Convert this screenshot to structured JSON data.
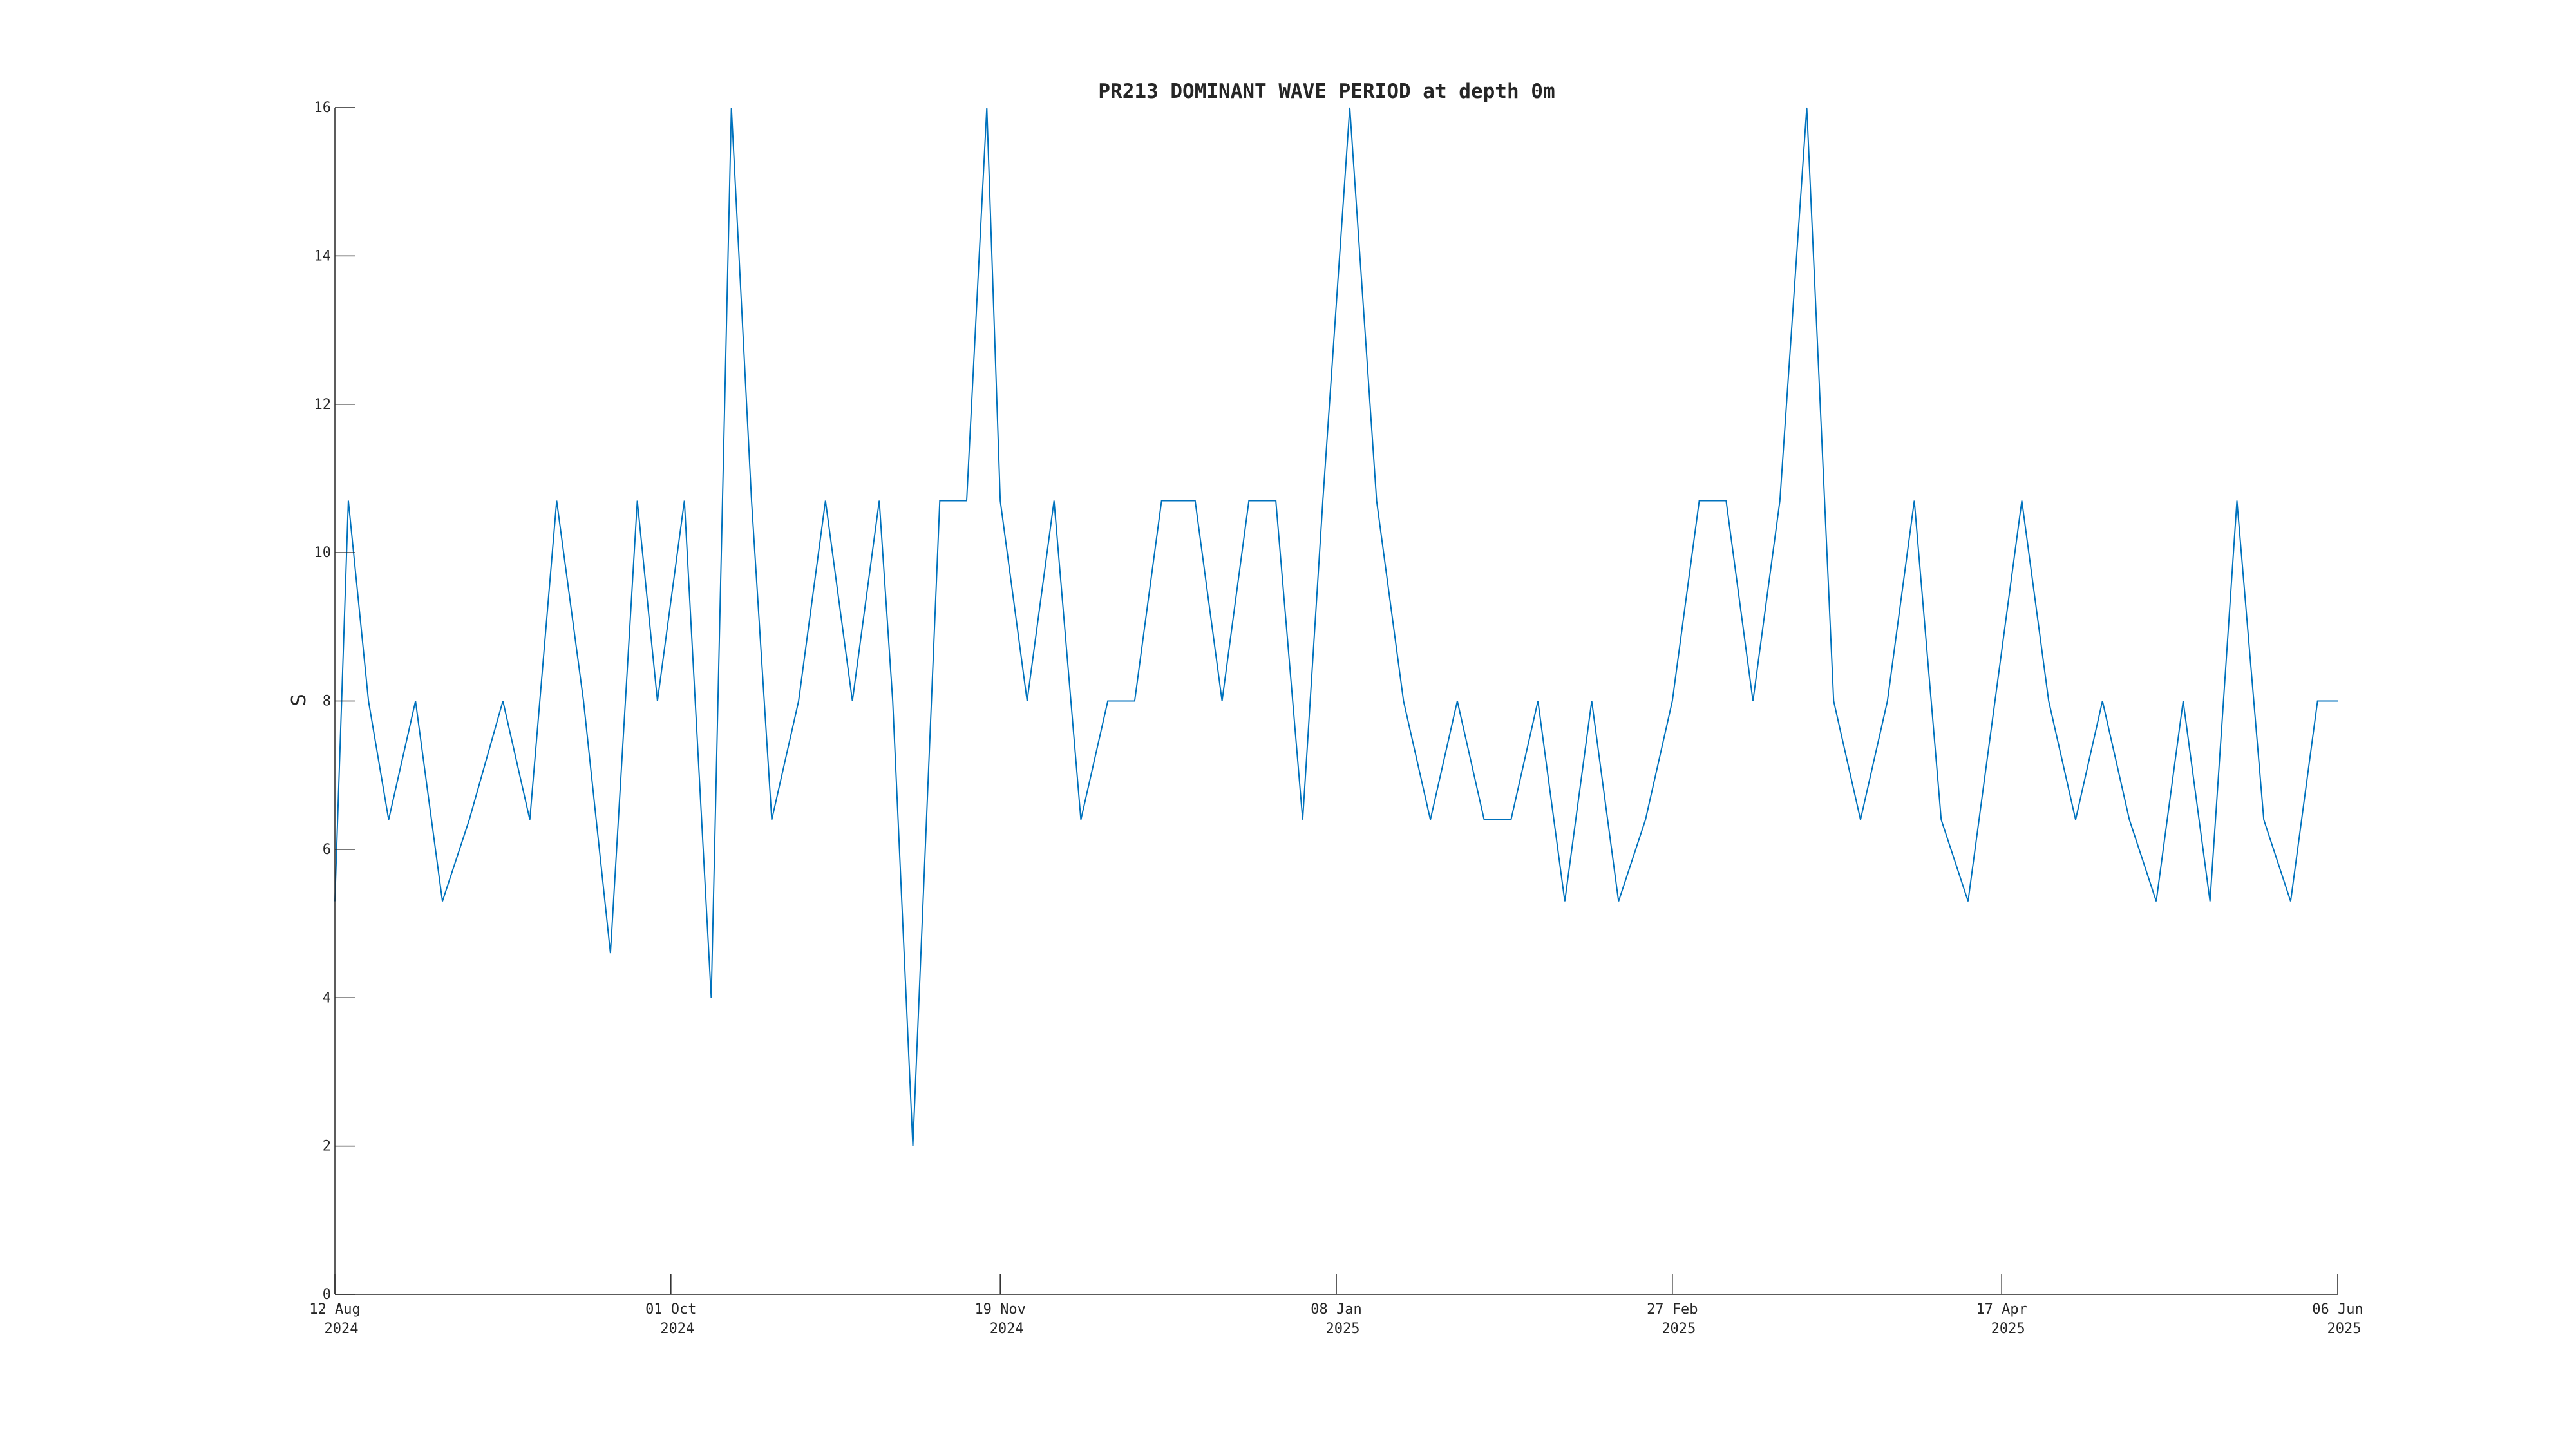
{
  "chart_data": {
    "type": "line",
    "title": "PR213 DOMINANT WAVE PERIOD at depth 0m",
    "xlabel": "",
    "ylabel": "S",
    "ylim": [
      0,
      16
    ],
    "yticks": [
      "0",
      "2",
      "4",
      "6",
      "8",
      "10",
      "12",
      "14",
      "16"
    ],
    "xlim": [
      "2024-08-12",
      "2025-06-06"
    ],
    "xticks": [
      {
        "date": "2024-08-12",
        "line1": "12 Aug",
        "line2": "2024"
      },
      {
        "date": "2024-10-01",
        "line1": "01 Oct",
        "line2": "2024"
      },
      {
        "date": "2024-11-19",
        "line1": "19 Nov",
        "line2": "2024"
      },
      {
        "date": "2025-01-08",
        "line1": "08 Jan",
        "line2": "2025"
      },
      {
        "date": "2025-02-27",
        "line1": "27 Feb",
        "line2": "2025"
      },
      {
        "date": "2025-04-17",
        "line1": "17 Apr",
        "line2": "2025"
      },
      {
        "date": "2025-06-06",
        "line1": "06 Jun",
        "line2": "2025"
      }
    ],
    "grid": false,
    "series": [
      {
        "color": "#0072BD",
        "x": [
          "2024-08-12",
          "2024-08-14",
          "2024-08-17",
          "2024-08-20",
          "2024-08-24",
          "2024-08-28",
          "2024-09-01",
          "2024-09-06",
          "2024-09-10",
          "2024-09-14",
          "2024-09-18",
          "2024-09-22",
          "2024-09-26",
          "2024-09-29",
          "2024-10-03",
          "2024-10-07",
          "2024-10-10",
          "2024-10-13",
          "2024-10-16",
          "2024-10-20",
          "2024-10-24",
          "2024-10-28",
          "2024-11-01",
          "2024-11-03",
          "2024-11-06",
          "2024-11-10",
          "2024-11-14",
          "2024-11-17",
          "2024-11-19",
          "2024-11-23",
          "2024-11-27",
          "2024-12-01",
          "2024-12-05",
          "2024-12-09",
          "2024-12-13",
          "2024-12-18",
          "2024-12-22",
          "2024-12-26",
          "2024-12-30",
          "2025-01-03",
          "2025-01-06",
          "2025-01-10",
          "2025-01-14",
          "2025-01-18",
          "2025-01-22",
          "2025-01-26",
          "2025-01-30",
          "2025-02-03",
          "2025-02-07",
          "2025-02-11",
          "2025-02-15",
          "2025-02-19",
          "2025-02-23",
          "2025-02-27",
          "2025-03-03",
          "2025-03-07",
          "2025-03-11",
          "2025-03-15",
          "2025-03-19",
          "2025-03-23",
          "2025-03-27",
          "2025-03-31",
          "2025-04-04",
          "2025-04-08",
          "2025-04-12",
          "2025-04-16",
          "2025-04-20",
          "2025-04-24",
          "2025-04-28",
          "2025-05-02",
          "2025-05-06",
          "2025-05-10",
          "2025-05-14",
          "2025-05-18",
          "2025-05-22",
          "2025-05-26",
          "2025-05-30",
          "2025-06-03",
          "2025-06-06"
        ],
        "y": [
          5.3,
          10.7,
          8,
          6.4,
          8,
          5.3,
          6.4,
          8,
          6.4,
          10.7,
          8,
          4.6,
          10.7,
          8,
          10.7,
          4,
          16,
          10.7,
          6.4,
          8,
          10.7,
          8,
          10.7,
          8,
          2,
          10.7,
          10.7,
          16,
          10.7,
          8,
          10.7,
          6.4,
          8,
          8,
          10.7,
          10.7,
          8,
          10.7,
          10.7,
          6.4,
          10.7,
          16,
          10.7,
          8,
          6.4,
          8,
          6.4,
          6.4,
          8,
          5.3,
          8,
          5.3,
          6.4,
          8,
          10.7,
          10.7,
          8,
          10.7,
          16,
          8,
          6.4,
          8,
          10.7,
          6.4,
          5.3,
          8,
          10.7,
          8,
          6.4,
          8,
          6.4,
          5.3,
          8,
          5.3,
          10.7,
          6.4,
          5.3,
          8,
          8
        ]
      }
    ]
  }
}
